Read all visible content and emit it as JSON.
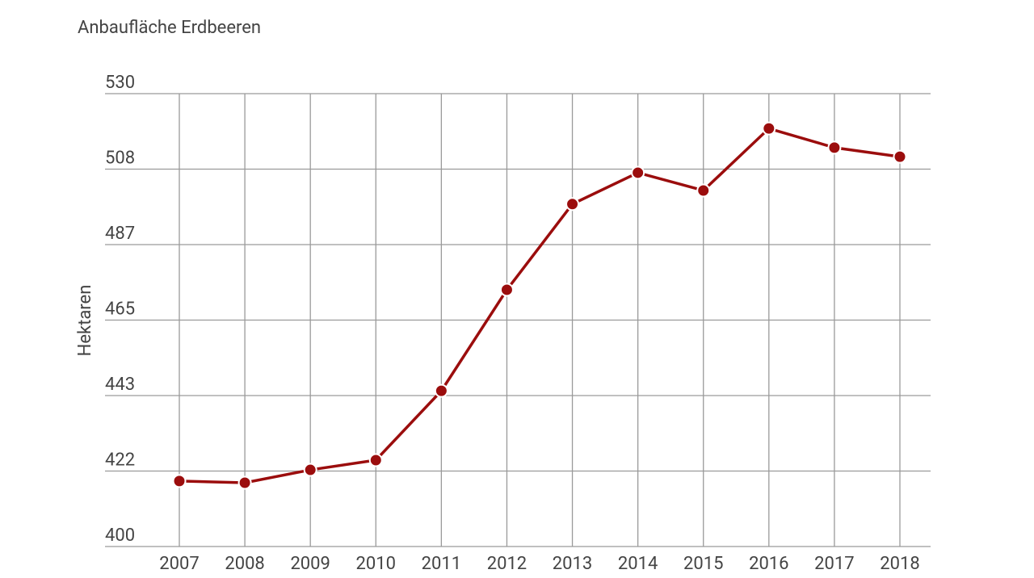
{
  "chart_data": {
    "type": "line",
    "title": "Anbaufläche Erdbeeren",
    "y_label": "Hektaren",
    "categories": [
      "2007",
      "2008",
      "2009",
      "2010",
      "2011",
      "2012",
      "2013",
      "2014",
      "2015",
      "2016",
      "2017",
      "2018"
    ],
    "series": [
      {
        "name": "Anbaufläche",
        "color": "#9b0d0d",
        "values": [
          418.8,
          418.3,
          422.0,
          424.8,
          444.7,
          473.7,
          498.3,
          507.3,
          502.2,
          520.0,
          514.5,
          511.9
        ]
      }
    ],
    "ylim": [
      400,
      530
    ],
    "yticks": [
      400,
      {
        "value": 421.67,
        "label": "422"
      },
      {
        "value": 443.33,
        "label": "443"
      },
      465,
      {
        "value": 486.67,
        "label": "487"
      },
      {
        "value": 508.33,
        "label": "508"
      },
      530
    ],
    "grid": true
  }
}
